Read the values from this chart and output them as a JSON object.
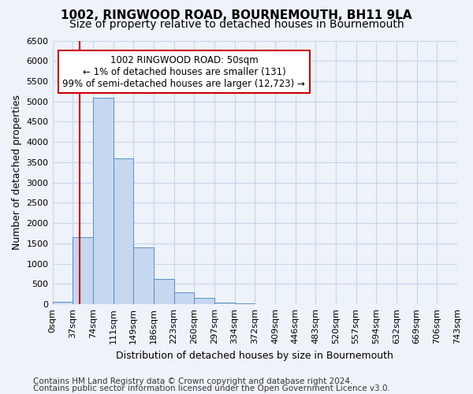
{
  "title": "1002, RINGWOOD ROAD, BOURNEMOUTH, BH11 9LA",
  "subtitle": "Size of property relative to detached houses in Bournemouth",
  "xlabel": "Distribution of detached houses by size in Bournemouth",
  "ylabel": "Number of detached properties",
  "footer_line1": "Contains HM Land Registry data © Crown copyright and database right 2024.",
  "footer_line2": "Contains public sector information licensed under the Open Government Licence v3.0.",
  "bin_labels": [
    "0sqm",
    "37sqm",
    "74sqm",
    "111sqm",
    "149sqm",
    "186sqm",
    "223sqm",
    "260sqm",
    "297sqm",
    "334sqm",
    "372sqm",
    "409sqm",
    "446sqm",
    "483sqm",
    "520sqm",
    "557sqm",
    "594sqm",
    "632sqm",
    "669sqm",
    "706sqm",
    "743sqm"
  ],
  "bar_values": [
    60,
    1650,
    5100,
    3600,
    1400,
    620,
    300,
    150,
    50,
    20,
    10,
    5,
    2,
    1,
    0,
    0,
    0,
    0,
    0,
    0
  ],
  "bar_color": "#c5d8f0",
  "bar_edge_color": "#5b8ec4",
  "annotation_text": "1002 RINGWOOD ROAD: 50sqm\n← 1% of detached houses are smaller (131)\n99% of semi-detached houses are larger (12,723) →",
  "annotation_box_facecolor": "#ffffff",
  "annotation_box_edgecolor": "#cc0000",
  "vline_color": "#cc0000",
  "vline_x": 1.35,
  "ylim": [
    0,
    6500
  ],
  "yticks": [
    0,
    500,
    1000,
    1500,
    2000,
    2500,
    3000,
    3500,
    4000,
    4500,
    5000,
    5500,
    6000,
    6500
  ],
  "grid_color": "#c8d5e8",
  "bg_color": "#eef2f9",
  "title_fontsize": 11,
  "subtitle_fontsize": 10,
  "axis_label_fontsize": 9,
  "tick_fontsize": 8,
  "annotation_fontsize": 8.5,
  "footer_fontsize": 7.5
}
